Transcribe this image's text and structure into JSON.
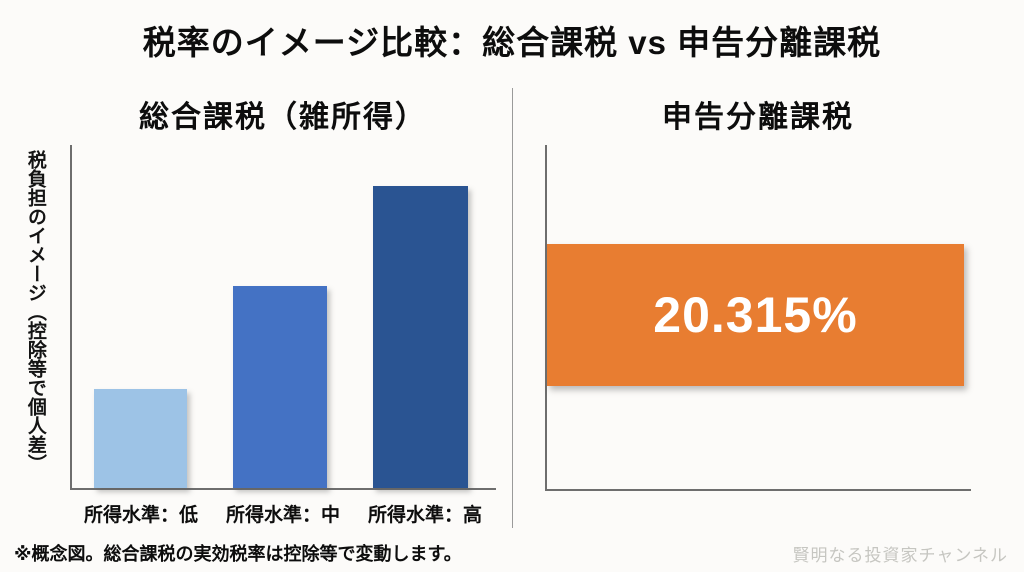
{
  "page": {
    "title": "税率のイメージ比較：総合課税 vs 申告分離課税",
    "footnote": "※概念図。総合課税の実効税率は控除等で変動します。",
    "watermark": "賢明なる投資家チャンネル"
  },
  "chart_data": [
    {
      "type": "bar",
      "title": "総合課税（雑所得）",
      "ylabel": "税負担のイメージ（控除等で個人差）",
      "xlabel": "",
      "categories": [
        "所得水準：低",
        "所得水準：中",
        "所得水準：高"
      ],
      "values": [
        29,
        59,
        88
      ],
      "unit": "relative tax burden (conceptual, y-axis has no tick labels)",
      "ylim": [
        0,
        100
      ],
      "bar_colors": [
        "#9DC3E6",
        "#4472C4",
        "#2A5492"
      ],
      "grid": false,
      "legend": false
    },
    {
      "type": "bar",
      "orientation": "horizontal",
      "title": "申告分離課税",
      "values": [
        20.315
      ],
      "data_labels": [
        "20.315%"
      ],
      "unit": "%",
      "bar_colors": [
        "#E87D31"
      ],
      "grid": false,
      "legend": false
    }
  ]
}
